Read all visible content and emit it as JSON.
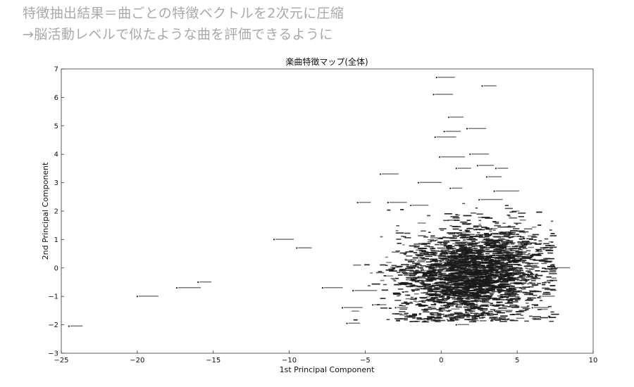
{
  "slide": {
    "heading_line1": "特徴抽出結果＝曲ごとの特徴ベクトルを2次元に圧縮",
    "heading_line2": "→脳活動レベルで似たような曲を評価できるように"
  },
  "chart_data": {
    "type": "scatter",
    "title": "楽曲特徴マップ(全体)",
    "xlabel": "1st Principal Component",
    "ylabel": "2nd Principal Component",
    "xlim": [
      -25,
      10
    ],
    "ylim": [
      -3,
      7
    ],
    "xticks": [
      -25,
      -20,
      -15,
      -10,
      -5,
      0,
      5,
      10
    ],
    "yticks": [
      -3,
      -2,
      -1,
      0,
      1,
      2,
      3,
      4,
      5,
      6,
      7
    ],
    "grid": false,
    "legend": "none",
    "marker_color": "#222222",
    "cluster_note": "dense cluster of several thousand labeled songs centred near (2, -0.3); only clearly separated points listed",
    "points": [
      {
        "x": -24.5,
        "y": -2.05,
        "label": ""
      },
      {
        "x": -20.0,
        "y": -1.0,
        "label": ""
      },
      {
        "x": -17.4,
        "y": -0.7,
        "label": ""
      },
      {
        "x": -16.0,
        "y": -0.5,
        "label": ""
      },
      {
        "x": -11.0,
        "y": 1.0,
        "label": ""
      },
      {
        "x": -9.5,
        "y": 0.7,
        "label": ""
      },
      {
        "x": -6.2,
        "y": -1.95,
        "label": ""
      },
      {
        "x": -5.8,
        "y": -0.8,
        "label": ""
      },
      {
        "x": -6.5,
        "y": -1.4,
        "label": ""
      },
      {
        "x": -4.0,
        "y": 3.3,
        "label": ""
      },
      {
        "x": -5.5,
        "y": 2.3,
        "label": ""
      },
      {
        "x": -3.5,
        "y": 2.3,
        "label": ""
      },
      {
        "x": -2.0,
        "y": 2.2,
        "label": ""
      },
      {
        "x": -1.5,
        "y": 3.0,
        "label": ""
      },
      {
        "x": -0.3,
        "y": 6.7,
        "label": ""
      },
      {
        "x": 2.7,
        "y": 6.4,
        "label": ""
      },
      {
        "x": -0.5,
        "y": 6.1,
        "label": ""
      },
      {
        "x": 0.5,
        "y": 5.3,
        "label": ""
      },
      {
        "x": 1.7,
        "y": 4.9,
        "label": ""
      },
      {
        "x": 0.2,
        "y": 4.8,
        "label": ""
      },
      {
        "x": -0.4,
        "y": 4.6,
        "label": ""
      },
      {
        "x": 1.9,
        "y": 4.0,
        "label": ""
      },
      {
        "x": -0.1,
        "y": 3.9,
        "label": ""
      },
      {
        "x": 2.4,
        "y": 3.6,
        "label": ""
      },
      {
        "x": 3.6,
        "y": 3.5,
        "label": ""
      },
      {
        "x": 1.0,
        "y": 3.5,
        "label": ""
      },
      {
        "x": 3.0,
        "y": 3.2,
        "label": ""
      },
      {
        "x": 0.6,
        "y": 2.8,
        "label": ""
      },
      {
        "x": 3.5,
        "y": 2.7,
        "label": ""
      },
      {
        "x": 2.5,
        "y": 2.4,
        "label": ""
      },
      {
        "x": 1.0,
        "y": -2.0,
        "label": ""
      },
      {
        "x": 3.5,
        "y": -1.5,
        "label": ""
      },
      {
        "x": 6.0,
        "y": -1.4,
        "label": ""
      },
      {
        "x": 6.5,
        "y": -1.0,
        "label": ""
      },
      {
        "x": 7.5,
        "y": 0.0,
        "label": ""
      },
      {
        "x": -4.5,
        "y": -1.3,
        "label": ""
      },
      {
        "x": -3.0,
        "y": -1.4,
        "label": ""
      },
      {
        "x": -7.8,
        "y": -0.7,
        "label": ""
      }
    ]
  }
}
